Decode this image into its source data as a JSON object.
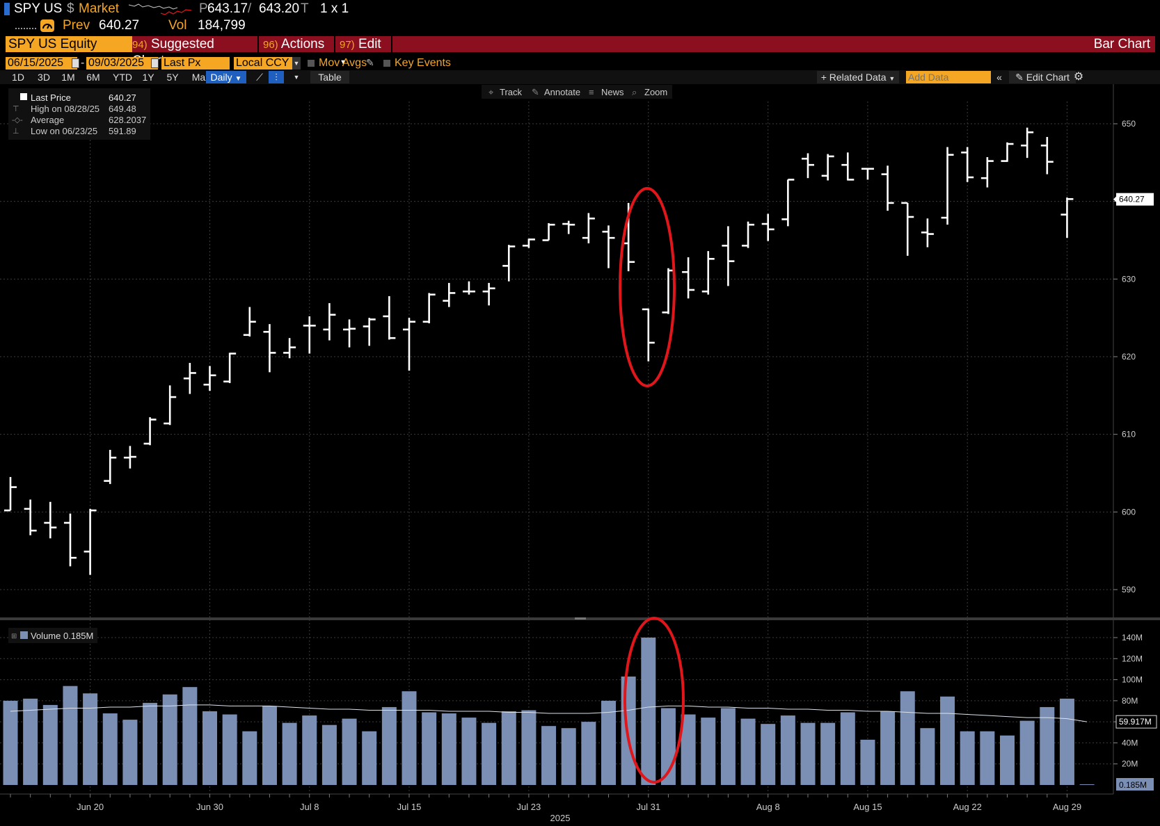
{
  "header": {
    "ticker": "SPY US",
    "market_symbol": "$",
    "market_label": "Market",
    "price_prefix": "P",
    "bid": "643.17",
    "ask": "643.20",
    "ask_suffix": "T",
    "size": "1 x 1",
    "prev_label": "Prev",
    "prev_value": "640.27",
    "vol_label": "Vol",
    "vol_value": "184,799",
    "gauge_icon": "speedometer-icon"
  },
  "menu": {
    "security": "SPY US Equity",
    "items": [
      {
        "num": "94)",
        "label": "Suggested Charts"
      },
      {
        "num": "96)",
        "label": "Actions"
      },
      {
        "num": "97)",
        "label": "Edit"
      }
    ],
    "right_title": "Bar Chart"
  },
  "controls": {
    "start_date": "06/15/2025",
    "end_date": "09/03/2025",
    "dash": "-",
    "field": "Last Px",
    "currency": "Local CCY",
    "mov_avgs": "Mov Avgs",
    "key_events": "Key Events"
  },
  "toolbar": {
    "ranges": [
      "1D",
      "3D",
      "1M",
      "6M",
      "YTD",
      "1Y",
      "5Y",
      "Max"
    ],
    "period": "Daily",
    "table": "Table",
    "related": "Related Data",
    "add_data_placeholder": "Add Data",
    "edit_chart": "Edit Chart"
  },
  "chart_tools": [
    "Track",
    "Annotate",
    "News",
    "Zoom"
  ],
  "legend": {
    "rows": [
      {
        "label": "Last Price",
        "value": "640.27"
      },
      {
        "label": "High on 08/28/25",
        "value": "649.48"
      },
      {
        "label": "Average",
        "value": "628.2037"
      },
      {
        "label": "Low on 06/23/25",
        "value": "591.89"
      }
    ],
    "volume_label": "Volume 0.185M"
  },
  "colors": {
    "accent_orange": "#f5a623",
    "menu_red": "#8b0f1e",
    "volume_bar": "#7b8fb5",
    "annotation_red": "#e0161b"
  },
  "chart_data": [
    {
      "type": "ohlc",
      "ylim": [
        586,
        654
      ],
      "yticks": [
        590,
        600,
        610,
        620,
        630,
        640,
        650
      ],
      "last_price_label": "640.27",
      "x_labels": [
        {
          "index": 4,
          "label": "Jun 20"
        },
        {
          "index": 10,
          "label": "Jun 30"
        },
        {
          "index": 15,
          "label": "Jul 8"
        },
        {
          "index": 20,
          "label": "Jul 15"
        },
        {
          "index": 26,
          "label": "Jul 23"
        },
        {
          "index": 32,
          "label": "Jul 31"
        },
        {
          "index": 38,
          "label": "Aug 8"
        },
        {
          "index": 43,
          "label": "Aug 15"
        },
        {
          "index": 48,
          "label": "Aug 22"
        },
        {
          "index": 53,
          "label": "Aug 29"
        }
      ],
      "year_label": "2025",
      "bars": [
        [
          600.2,
          604.5,
          600.2,
          603.2
        ],
        [
          600.4,
          601.6,
          597.0,
          597.6
        ],
        [
          598.6,
          601.3,
          596.6,
          598.0
        ],
        [
          598.6,
          599.8,
          593.0,
          594.1
        ],
        [
          594.9,
          600.4,
          591.9,
          600.2
        ],
        [
          604.0,
          608.0,
          603.6,
          607.0
        ],
        [
          607.0,
          608.5,
          605.6,
          607.1
        ],
        [
          608.8,
          612.2,
          608.6,
          611.9
        ],
        [
          611.4,
          616.3,
          611.2,
          614.8
        ],
        [
          617.2,
          619.2,
          615.2,
          617.9
        ],
        [
          616.4,
          618.8,
          615.6,
          617.6
        ],
        [
          616.8,
          620.5,
          616.6,
          620.4
        ],
        [
          622.8,
          626.4,
          622.6,
          624.5
        ],
        [
          623.2,
          624.2,
          618.0,
          620.5
        ],
        [
          620.5,
          622.4,
          619.8,
          621.2
        ],
        [
          624.0,
          625.2,
          620.4,
          624.0
        ],
        [
          623.5,
          626.9,
          622.1,
          625.4
        ],
        [
          623.5,
          624.8,
          621.2,
          623.6
        ],
        [
          623.9,
          625.0,
          621.4,
          624.8
        ],
        [
          625.2,
          627.8,
          622.2,
          622.4
        ],
        [
          623.5,
          625.0,
          618.2,
          624.5
        ],
        [
          624.5,
          628.2,
          624.3,
          628.0
        ],
        [
          627.2,
          629.5,
          626.4,
          628.2
        ],
        [
          628.4,
          629.7,
          628.0,
          628.4
        ],
        [
          628.4,
          629.5,
          626.6,
          628.8
        ],
        [
          631.7,
          634.4,
          629.7,
          634.2
        ],
        [
          634.3,
          635.2,
          634.0,
          635.1
        ],
        [
          635.0,
          637.2,
          635.0,
          637.0
        ],
        [
          637.1,
          637.5,
          635.8,
          637.0
        ],
        [
          635.3,
          638.5,
          634.6,
          637.8
        ],
        [
          636.1,
          636.9,
          631.4,
          635.3
        ],
        [
          634.6,
          639.8,
          631.0,
          632.2
        ],
        [
          626.1,
          626.2,
          619.4,
          621.8
        ],
        [
          625.7,
          631.4,
          625.5,
          631.1
        ],
        [
          630.9,
          632.8,
          627.5,
          628.6
        ],
        [
          628.4,
          633.6,
          628.0,
          632.6
        ],
        [
          634.3,
          636.8,
          629.1,
          632.3
        ],
        [
          634.3,
          637.4,
          634.0,
          637.0
        ],
        [
          637.1,
          638.4,
          634.9,
          636.4
        ],
        [
          637.7,
          642.8,
          636.8,
          642.8
        ],
        [
          645.5,
          646.2,
          643.0,
          644.7
        ],
        [
          643.3,
          646.1,
          642.7,
          645.8
        ],
        [
          644.7,
          646.3,
          642.7,
          642.8
        ],
        [
          644.2,
          644.3,
          642.8,
          644.2
        ],
        [
          643.5,
          644.6,
          638.8,
          639.8
        ],
        [
          639.8,
          639.8,
          633.0,
          638.0
        ],
        [
          636.0,
          637.8,
          634.1,
          635.8
        ],
        [
          637.9,
          647.0,
          637.0,
          646.0
        ],
        [
          646.3,
          647.0,
          642.5,
          643.1
        ],
        [
          643.0,
          645.7,
          641.8,
          645.2
        ],
        [
          645.2,
          647.6,
          645.1,
          647.4
        ],
        [
          647.2,
          649.5,
          645.6,
          648.9
        ],
        [
          647.2,
          648.3,
          643.5,
          645.1
        ],
        [
          638.3,
          640.5,
          635.3,
          640.3
        ]
      ]
    },
    {
      "type": "bar",
      "series": [
        {
          "name": "Volume",
          "values": [
            80,
            82,
            76,
            94,
            87,
            68,
            62,
            78,
            86,
            93,
            70,
            67,
            51,
            75,
            59,
            66,
            57,
            63,
            51,
            74,
            89,
            69,
            68,
            64,
            59,
            70,
            71,
            56,
            54,
            60,
            80,
            103,
            140,
            73,
            67,
            64,
            73,
            63,
            58,
            66,
            59,
            59,
            69,
            43,
            70,
            89,
            54,
            84,
            51,
            51,
            47,
            61,
            74,
            82,
            0.185
          ]
        },
        {
          "name": "Volume moving average",
          "values": [
            70,
            71,
            72,
            73,
            73,
            74,
            74,
            75,
            75,
            76,
            76,
            75,
            75,
            75,
            74,
            73,
            72,
            72,
            71,
            71,
            71,
            71,
            70,
            70,
            70,
            69,
            69,
            68,
            68,
            68,
            69,
            71,
            74,
            75,
            75,
            74,
            74,
            73,
            73,
            72,
            72,
            71,
            71,
            70,
            70,
            69,
            68,
            68,
            67,
            66,
            65,
            64,
            64,
            63,
            60
          ]
        }
      ],
      "ylim": [
        0,
        148
      ],
      "yticks": [
        {
          "v": 20,
          "l": "20M"
        },
        {
          "v": 40,
          "l": "40M"
        },
        {
          "v": 60,
          "l": "60M"
        },
        {
          "v": 80,
          "l": "80M"
        },
        {
          "v": 100,
          "l": "100M"
        },
        {
          "v": 120,
          "l": "120M"
        },
        {
          "v": 140,
          "l": "140M"
        }
      ],
      "ma_label": "59.917M",
      "last_label": "0.185M",
      "units": "M"
    }
  ]
}
